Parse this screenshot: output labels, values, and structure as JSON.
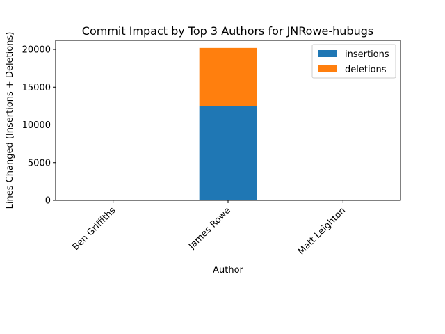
{
  "chart_data": {
    "type": "bar",
    "stacked": true,
    "title": "Commit Impact by Top 3 Authors for JNRowe-hubugs",
    "xlabel": "Author",
    "ylabel": "Lines Changed (Insertions + Deletions)",
    "categories": [
      "Ben Griffiths",
      "James Rowe",
      "Matt Leighton"
    ],
    "series": [
      {
        "name": "insertions",
        "values": [
          0,
          12450,
          0
        ],
        "color": "#1f77b4"
      },
      {
        "name": "deletions",
        "values": [
          0,
          7750,
          0
        ],
        "color": "#ff7f0e"
      }
    ],
    "ylim": [
      0,
      21200
    ],
    "yticks": [
      0,
      5000,
      10000,
      15000,
      20000
    ],
    "grid": false,
    "legend_position": "top-right"
  }
}
